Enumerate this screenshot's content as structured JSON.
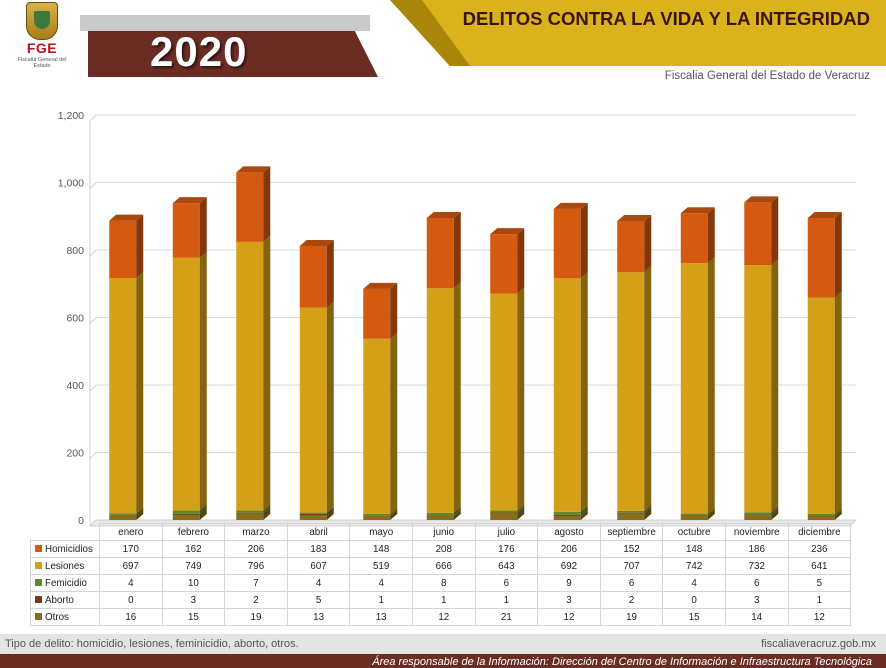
{
  "header": {
    "logo_text": "FGE",
    "logo_subtitle": "Fiscalía General del Estado",
    "year": "2020",
    "title": "DELITOS CONTRA LA VIDA Y LA INTEGRIDAD",
    "subtitle": "Fiscalia General del Estado de Veracruz"
  },
  "chart_data": {
    "type": "bar",
    "stacked": true,
    "categories": [
      "enero",
      "febrero",
      "marzo",
      "abril",
      "mayo",
      "junio",
      "julio",
      "agosto",
      "septiembre",
      "octubre",
      "noviembre",
      "diciembre"
    ],
    "ylim": [
      0,
      1200
    ],
    "yticks": [
      "0",
      "200",
      "400",
      "600",
      "800",
      "1,000",
      "1,200"
    ],
    "ytick_values": [
      0,
      200,
      400,
      600,
      800,
      1000,
      1200
    ],
    "grid": true,
    "series": [
      {
        "name": "Homicidios",
        "color": "#d45a12",
        "values": [
          170,
          162,
          206,
          183,
          148,
          208,
          176,
          206,
          152,
          148,
          186,
          236
        ]
      },
      {
        "name": "Lesiones",
        "color": "#d4a017",
        "values": [
          697,
          749,
          796,
          607,
          519,
          666,
          643,
          692,
          707,
          742,
          732,
          641
        ]
      },
      {
        "name": "Femicidio",
        "color": "#5a8a2a",
        "values": [
          4,
          10,
          7,
          4,
          4,
          8,
          6,
          9,
          6,
          4,
          6,
          5
        ]
      },
      {
        "name": "Aborto",
        "color": "#7a3a1a",
        "values": [
          0,
          3,
          2,
          5,
          1,
          1,
          1,
          3,
          2,
          0,
          3,
          1
        ]
      },
      {
        "name": "Otros",
        "color": "#8a6d1a",
        "values": [
          16,
          15,
          19,
          13,
          13,
          12,
          21,
          12,
          19,
          15,
          14,
          12
        ]
      }
    ]
  },
  "footer": {
    "left": "Tipo de delito: homicidio, lesiones, feminicidio, aborto, otros.",
    "right": "fiscaliaveracruz.gob.mx",
    "bottom": "Área responsable de la Información: Dirección del Centro de Información e Infraestructura Tecnológica"
  }
}
